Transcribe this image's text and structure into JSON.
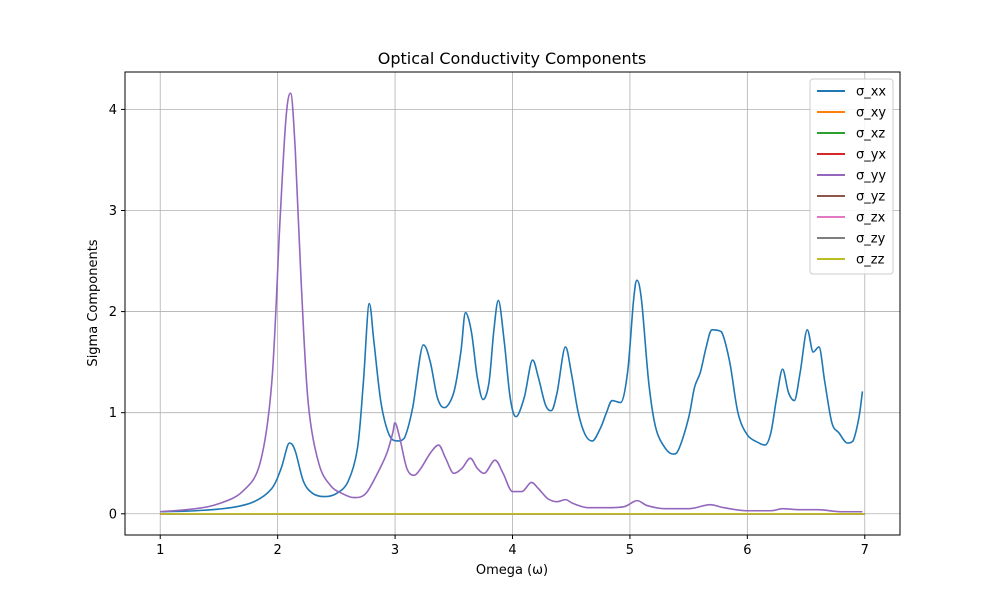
{
  "chart_data": {
    "type": "line",
    "title": "Optical Conductivity Components",
    "xlabel": "Omega (ω)",
    "ylabel": "Sigma Components",
    "xlim": [
      0.7,
      7.3
    ],
    "ylim": [
      -0.21,
      4.37
    ],
    "xticks": [
      1,
      2,
      3,
      4,
      5,
      6,
      7
    ],
    "yticks": [
      0,
      1,
      2,
      3,
      4
    ],
    "grid": true,
    "legend_position": "top-right",
    "series": [
      {
        "name": "σ_xx",
        "color": "#1f77b4",
        "points": [
          [
            1.0,
            0.02
          ],
          [
            1.3,
            0.03
          ],
          [
            1.6,
            0.06
          ],
          [
            1.8,
            0.12
          ],
          [
            1.95,
            0.25
          ],
          [
            2.03,
            0.45
          ],
          [
            2.1,
            0.7
          ],
          [
            2.15,
            0.62
          ],
          [
            2.22,
            0.32
          ],
          [
            2.3,
            0.2
          ],
          [
            2.4,
            0.17
          ],
          [
            2.5,
            0.2
          ],
          [
            2.6,
            0.32
          ],
          [
            2.68,
            0.65
          ],
          [
            2.73,
            1.3
          ],
          [
            2.78,
            2.08
          ],
          [
            2.82,
            1.7
          ],
          [
            2.88,
            1.1
          ],
          [
            2.95,
            0.78
          ],
          [
            3.02,
            0.72
          ],
          [
            3.08,
            0.75
          ],
          [
            3.15,
            1.05
          ],
          [
            3.24,
            1.67
          ],
          [
            3.3,
            1.5
          ],
          [
            3.36,
            1.15
          ],
          [
            3.42,
            1.05
          ],
          [
            3.5,
            1.2
          ],
          [
            3.56,
            1.6
          ],
          [
            3.6,
            1.99
          ],
          [
            3.65,
            1.8
          ],
          [
            3.7,
            1.35
          ],
          [
            3.75,
            1.13
          ],
          [
            3.8,
            1.3
          ],
          [
            3.84,
            1.8
          ],
          [
            3.88,
            2.11
          ],
          [
            3.93,
            1.7
          ],
          [
            3.98,
            1.15
          ],
          [
            4.03,
            0.96
          ],
          [
            4.1,
            1.15
          ],
          [
            4.17,
            1.52
          ],
          [
            4.22,
            1.35
          ],
          [
            4.28,
            1.08
          ],
          [
            4.33,
            1.02
          ],
          [
            4.38,
            1.2
          ],
          [
            4.45,
            1.65
          ],
          [
            4.5,
            1.4
          ],
          [
            4.56,
            1.0
          ],
          [
            4.62,
            0.78
          ],
          [
            4.68,
            0.72
          ],
          [
            4.75,
            0.85
          ],
          [
            4.8,
            1.0
          ],
          [
            4.85,
            1.12
          ],
          [
            4.92,
            1.1
          ],
          [
            4.98,
            1.4
          ],
          [
            5.03,
            2.1
          ],
          [
            5.06,
            2.31
          ],
          [
            5.1,
            2.1
          ],
          [
            5.16,
            1.3
          ],
          [
            5.22,
            0.85
          ],
          [
            5.3,
            0.65
          ],
          [
            5.37,
            0.59
          ],
          [
            5.42,
            0.65
          ],
          [
            5.5,
            0.95
          ],
          [
            5.55,
            1.25
          ],
          [
            5.6,
            1.4
          ],
          [
            5.65,
            1.65
          ],
          [
            5.7,
            1.82
          ],
          [
            5.78,
            1.8
          ],
          [
            5.85,
            1.5
          ],
          [
            5.92,
            1.0
          ],
          [
            6.0,
            0.78
          ],
          [
            6.1,
            0.7
          ],
          [
            6.15,
            0.68
          ],
          [
            6.2,
            0.8
          ],
          [
            6.25,
            1.15
          ],
          [
            6.3,
            1.43
          ],
          [
            6.35,
            1.2
          ],
          [
            6.4,
            1.12
          ],
          [
            6.45,
            1.4
          ],
          [
            6.51,
            1.82
          ],
          [
            6.56,
            1.6
          ],
          [
            6.61,
            1.65
          ],
          [
            6.66,
            1.3
          ],
          [
            6.72,
            0.9
          ],
          [
            6.78,
            0.8
          ],
          [
            6.85,
            0.7
          ],
          [
            6.9,
            0.72
          ],
          [
            6.95,
            0.95
          ],
          [
            6.98,
            1.21
          ]
        ]
      },
      {
        "name": "σ_xy",
        "color": "#ff7f0e",
        "points": [
          [
            1.0,
            0.0
          ],
          [
            7.0,
            0.0
          ]
        ]
      },
      {
        "name": "σ_xz",
        "color": "#2ca02c",
        "points": [
          [
            1.0,
            0.0
          ],
          [
            7.0,
            0.0
          ]
        ]
      },
      {
        "name": "σ_yx",
        "color": "#d62728",
        "points": [
          [
            1.0,
            0.0
          ],
          [
            7.0,
            0.0
          ]
        ]
      },
      {
        "name": "σ_yy",
        "color": "#9467bd",
        "points": [
          [
            1.0,
            0.02
          ],
          [
            1.3,
            0.05
          ],
          [
            1.5,
            0.1
          ],
          [
            1.7,
            0.22
          ],
          [
            1.85,
            0.5
          ],
          [
            1.95,
            1.3
          ],
          [
            2.02,
            2.9
          ],
          [
            2.07,
            3.9
          ],
          [
            2.11,
            4.16
          ],
          [
            2.15,
            3.6
          ],
          [
            2.2,
            2.3
          ],
          [
            2.26,
            1.1
          ],
          [
            2.35,
            0.5
          ],
          [
            2.45,
            0.28
          ],
          [
            2.55,
            0.2
          ],
          [
            2.65,
            0.16
          ],
          [
            2.75,
            0.2
          ],
          [
            2.85,
            0.4
          ],
          [
            2.93,
            0.6
          ],
          [
            2.98,
            0.8
          ],
          [
            3.0,
            0.9
          ],
          [
            3.04,
            0.75
          ],
          [
            3.1,
            0.45
          ],
          [
            3.16,
            0.38
          ],
          [
            3.22,
            0.45
          ],
          [
            3.3,
            0.6
          ],
          [
            3.37,
            0.68
          ],
          [
            3.43,
            0.55
          ],
          [
            3.5,
            0.4
          ],
          [
            3.57,
            0.45
          ],
          [
            3.64,
            0.55
          ],
          [
            3.7,
            0.45
          ],
          [
            3.76,
            0.4
          ],
          [
            3.85,
            0.53
          ],
          [
            3.92,
            0.4
          ],
          [
            4.0,
            0.22
          ],
          [
            4.08,
            0.22
          ],
          [
            4.16,
            0.31
          ],
          [
            4.22,
            0.25
          ],
          [
            4.3,
            0.15
          ],
          [
            4.38,
            0.12
          ],
          [
            4.45,
            0.14
          ],
          [
            4.52,
            0.1
          ],
          [
            4.65,
            0.06
          ],
          [
            4.8,
            0.06
          ],
          [
            4.95,
            0.07
          ],
          [
            5.06,
            0.13
          ],
          [
            5.15,
            0.08
          ],
          [
            5.3,
            0.05
          ],
          [
            5.5,
            0.05
          ],
          [
            5.68,
            0.09
          ],
          [
            5.8,
            0.06
          ],
          [
            6.0,
            0.03
          ],
          [
            6.2,
            0.03
          ],
          [
            6.3,
            0.05
          ],
          [
            6.45,
            0.04
          ],
          [
            6.6,
            0.04
          ],
          [
            6.8,
            0.02
          ],
          [
            6.98,
            0.02
          ]
        ]
      },
      {
        "name": "σ_yz",
        "color": "#8c564b",
        "points": [
          [
            1.0,
            0.0
          ],
          [
            7.0,
            0.0
          ]
        ]
      },
      {
        "name": "σ_zx",
        "color": "#e377c2",
        "points": [
          [
            1.0,
            0.0
          ],
          [
            7.0,
            0.0
          ]
        ]
      },
      {
        "name": "σ_zy",
        "color": "#7f7f7f",
        "points": [
          [
            1.0,
            0.0
          ],
          [
            7.0,
            0.0
          ]
        ]
      },
      {
        "name": "σ_zz",
        "color": "#bcbd22",
        "points": [
          [
            1.0,
            0.0
          ],
          [
            7.0,
            0.0
          ]
        ]
      }
    ]
  }
}
